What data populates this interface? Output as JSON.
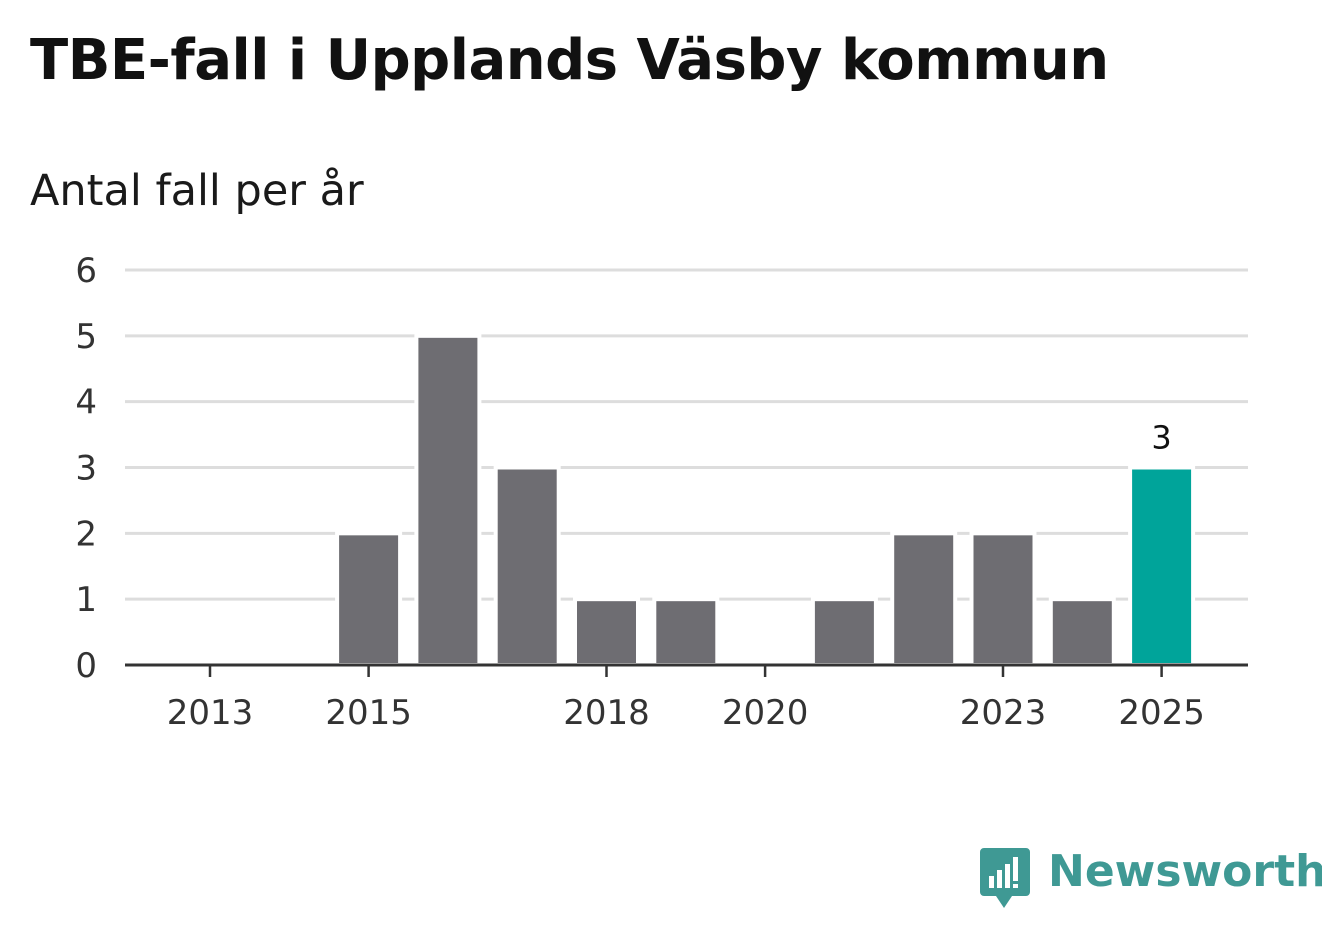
{
  "chart_data": {
    "type": "bar",
    "title": "TBE-fall i Upplands Väsby kommun",
    "subtitle": "Antal fall per år",
    "xlabel": "",
    "ylabel": "",
    "categories": [
      "2013",
      "2014",
      "2015",
      "2016",
      "2017",
      "2018",
      "2019",
      "2020",
      "2021",
      "2022",
      "2023",
      "2024",
      "2025"
    ],
    "values": [
      0,
      0,
      2,
      5,
      3,
      1,
      1,
      0,
      1,
      2,
      2,
      1,
      3
    ],
    "x_tick_labels": [
      "2013",
      "2015",
      "2018",
      "2020",
      "2023",
      "2025"
    ],
    "y_ticks": [
      "0",
      "1",
      "2",
      "3",
      "4",
      "5",
      "6"
    ],
    "ylim": [
      0,
      6
    ],
    "grid": true,
    "highlight": {
      "category": "2025",
      "label": "3"
    },
    "colors": {
      "bar": "#6e6d72",
      "highlight": "#00a49a",
      "grid": "#dddddd",
      "axis": "#333333"
    }
  },
  "branding": {
    "name": "Newsworthy",
    "icon": "bar-chart-speech-bubble-icon",
    "color": "#3f9994"
  }
}
